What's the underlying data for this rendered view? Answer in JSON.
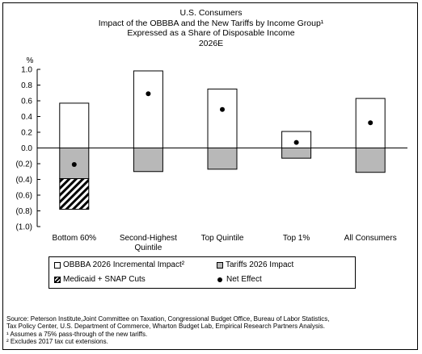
{
  "chart_data": {
    "type": "bar",
    "title_lines": [
      "U.S. Consumers",
      "Impact of the OBBBA and the New Tariffs by Income Group¹",
      "Expressed as a Share of Disposable Income",
      "2026E"
    ],
    "y_unit_label": "%",
    "ylim": [
      -1.0,
      1.0
    ],
    "y_ticks": [
      1.0,
      0.8,
      0.6,
      0.4,
      0.2,
      0.0,
      -0.2,
      -0.4,
      -0.6,
      -0.8,
      -1.0
    ],
    "y_tick_labels": [
      "1.0",
      "0.8",
      "0.6",
      "0.4",
      "0.2",
      "0.0",
      "(0.2)",
      "(0.4)",
      "(0.6)",
      "(0.8)",
      "(1.0)"
    ],
    "categories": [
      [
        "Bottom 60%"
      ],
      [
        "Second-Highest",
        "Quintile"
      ],
      [
        "Top Quintile"
      ],
      [
        "Top 1%"
      ],
      [
        "All Consumers"
      ]
    ],
    "series": [
      {
        "name": "OBBBA 2026 Incremental Impact²",
        "values": [
          0.57,
          0.98,
          0.75,
          0.21,
          0.63
        ],
        "color": "#ffffff"
      },
      {
        "name": "Tariffs 2026 Impact",
        "values": [
          -0.39,
          -0.3,
          -0.27,
          -0.13,
          -0.31
        ],
        "color": "#b8b8b8"
      },
      {
        "name": "Medicaid + SNAP Cuts",
        "values": [
          -0.39,
          0,
          0,
          0,
          0
        ],
        "color": "hatch"
      },
      {
        "name": "Net Effect",
        "values": [
          -0.21,
          0.69,
          0.49,
          0.07,
          0.32
        ],
        "color": "#000000"
      }
    ],
    "grid": false,
    "legend_position": "bottom"
  },
  "footnotes": [
    "Source: Peterson Institute,Joint Committee on Taxation, Congressional Budget Office, Bureau of Labor Statistics,",
    "Tax Policy Center, U.S. Department of Commerce, Wharton Budget Lab, Empirical Research Partners Analysis.",
    "¹ Assumes a 75% pass-through of the new tariffs.",
    "² Excludes 2017 tax cut extensions."
  ]
}
